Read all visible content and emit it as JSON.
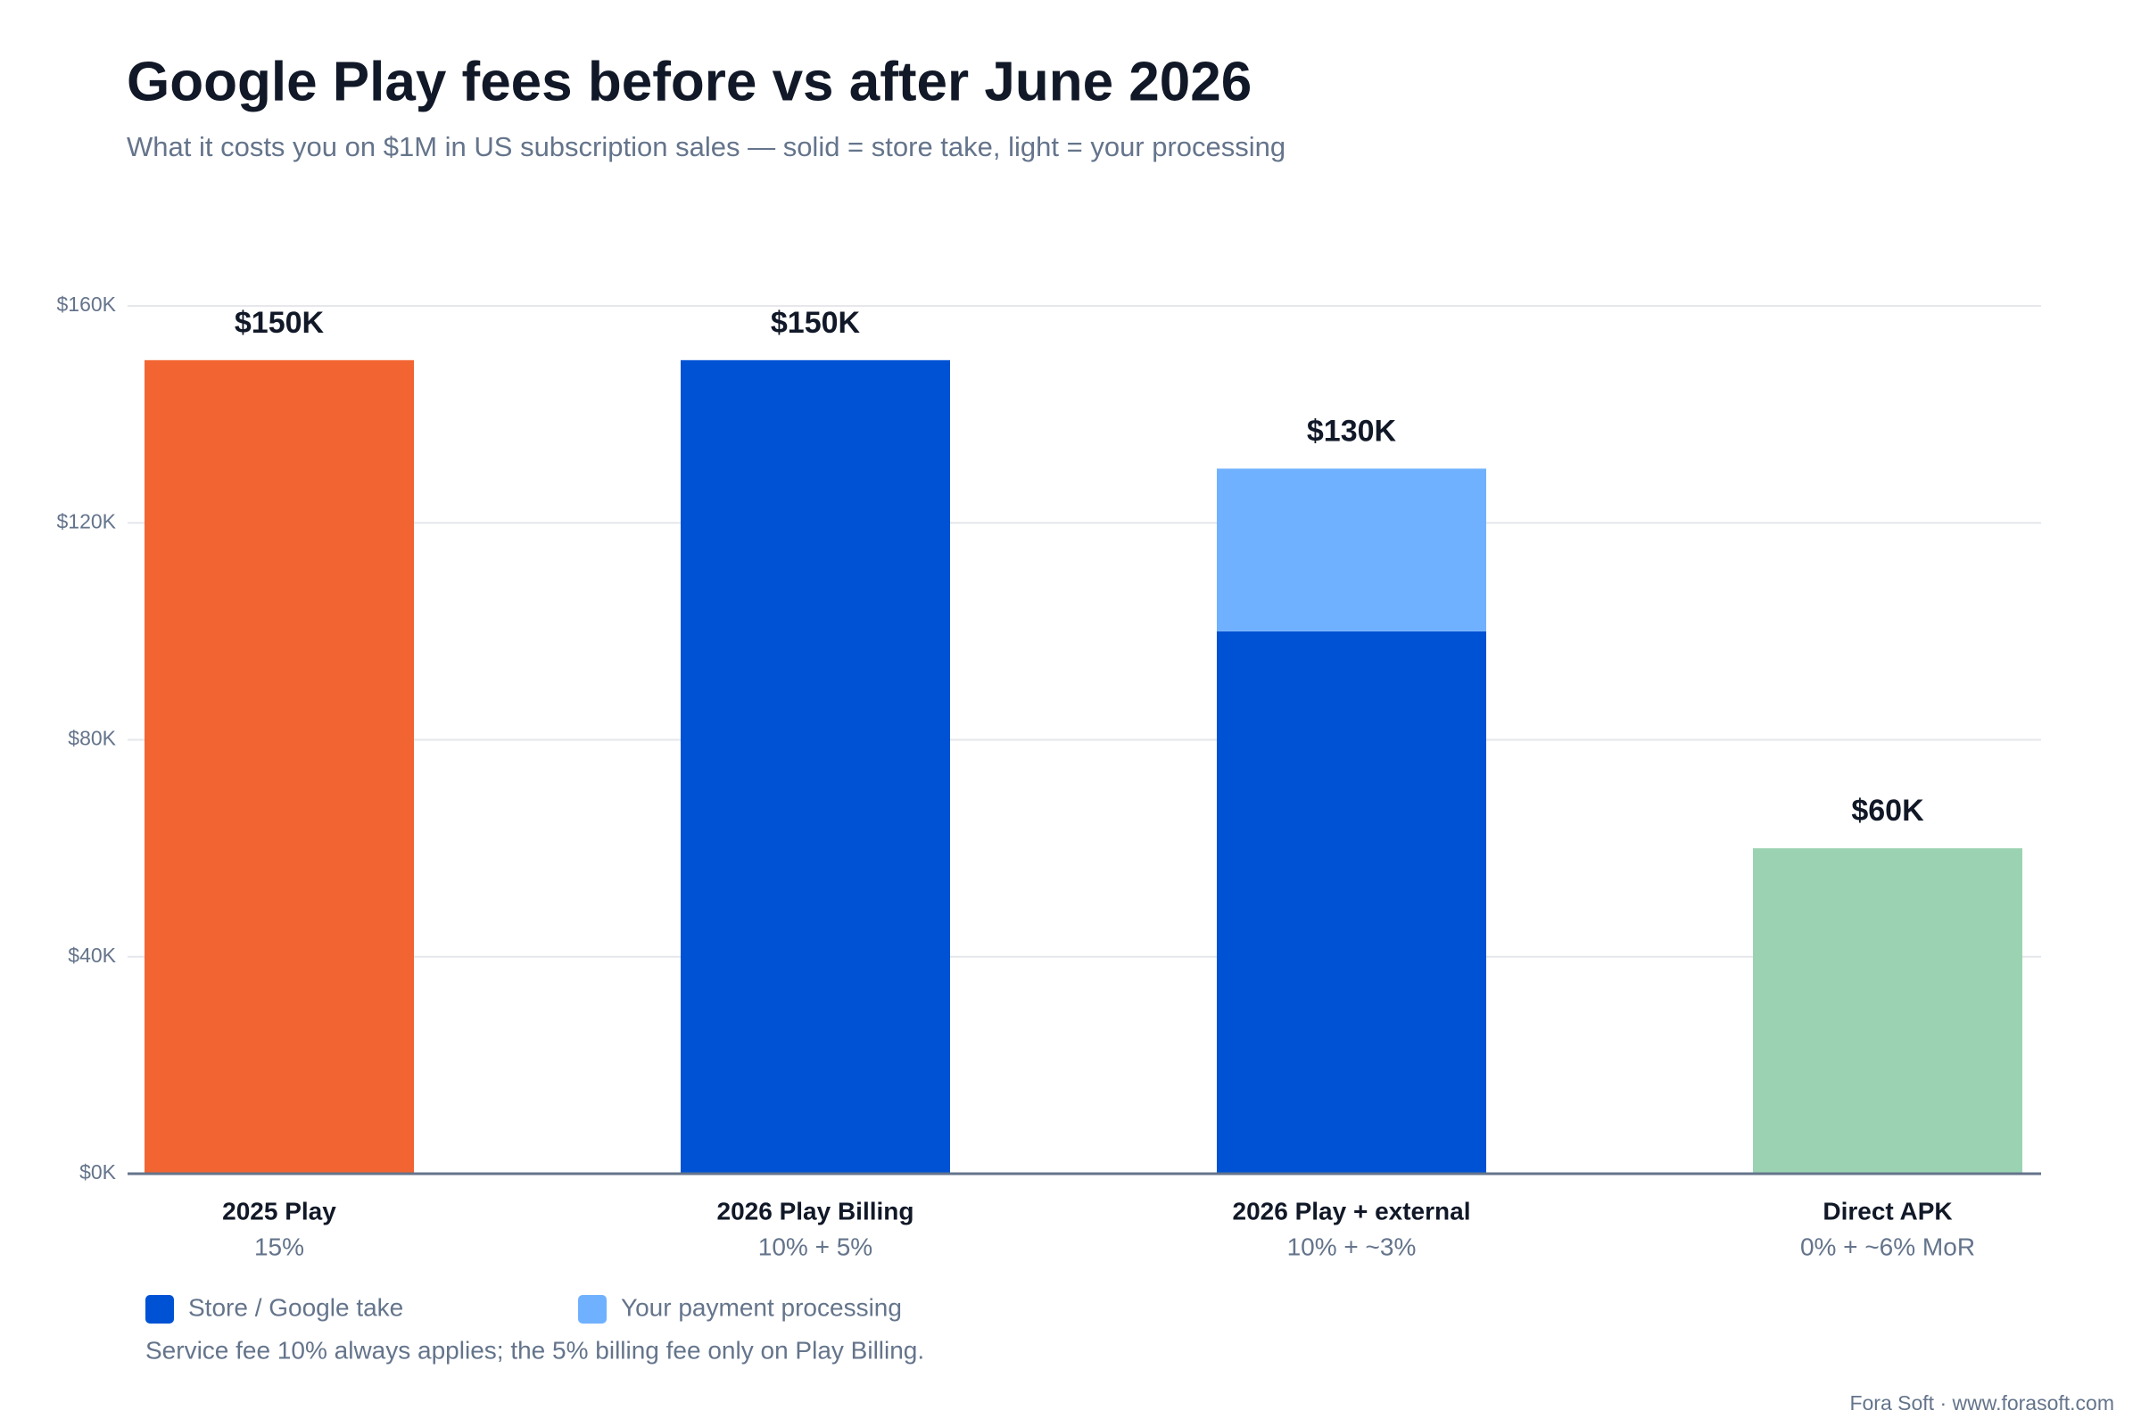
{
  "chart_data": {
    "type": "stacked_bar",
    "title": "Google Play fees before vs after June 2026",
    "subtitle": "What it costs you on $1M in US subscription sales — solid = store take, light = your processing",
    "categories": [
      "2025 Play",
      "2026 Play Billing",
      "2026 Play + external",
      "Direct APK"
    ],
    "category_sublabels": [
      "15%",
      "10% + 5%",
      "10% + ~3%",
      "0% + ~6% MoR"
    ],
    "series": [
      {
        "name": "Store / Google take",
        "color": "#0052d4",
        "point_colors": [
          "#f26532",
          "#0052d4",
          "#0052d4",
          "#0052d4"
        ],
        "values": [
          150000,
          150000,
          100000,
          0
        ]
      },
      {
        "name": "Your payment processing",
        "color": "#70b1ff",
        "point_colors": [
          "#70b1ff",
          "#70b1ff",
          "#70b1ff",
          "#9bd3b2"
        ],
        "values": [
          0,
          0,
          30000,
          60000
        ]
      }
    ],
    "total_labels": [
      "$150K",
      "$150K",
      "$130K",
      "$60K"
    ],
    "ylim": [
      0,
      160000
    ],
    "yticks": [
      {
        "value": 0,
        "label": "$0K"
      },
      {
        "value": 40000,
        "label": "$40K"
      },
      {
        "value": 80000,
        "label": "$80K"
      },
      {
        "value": 120000,
        "label": "$120K"
      },
      {
        "value": 160000,
        "label": "$160K"
      }
    ],
    "grid": true,
    "footnote": "Service fee 10% always applies; the 5% billing fee only on Play Billing.",
    "source": "Fora Soft · www.forasoft.com"
  }
}
